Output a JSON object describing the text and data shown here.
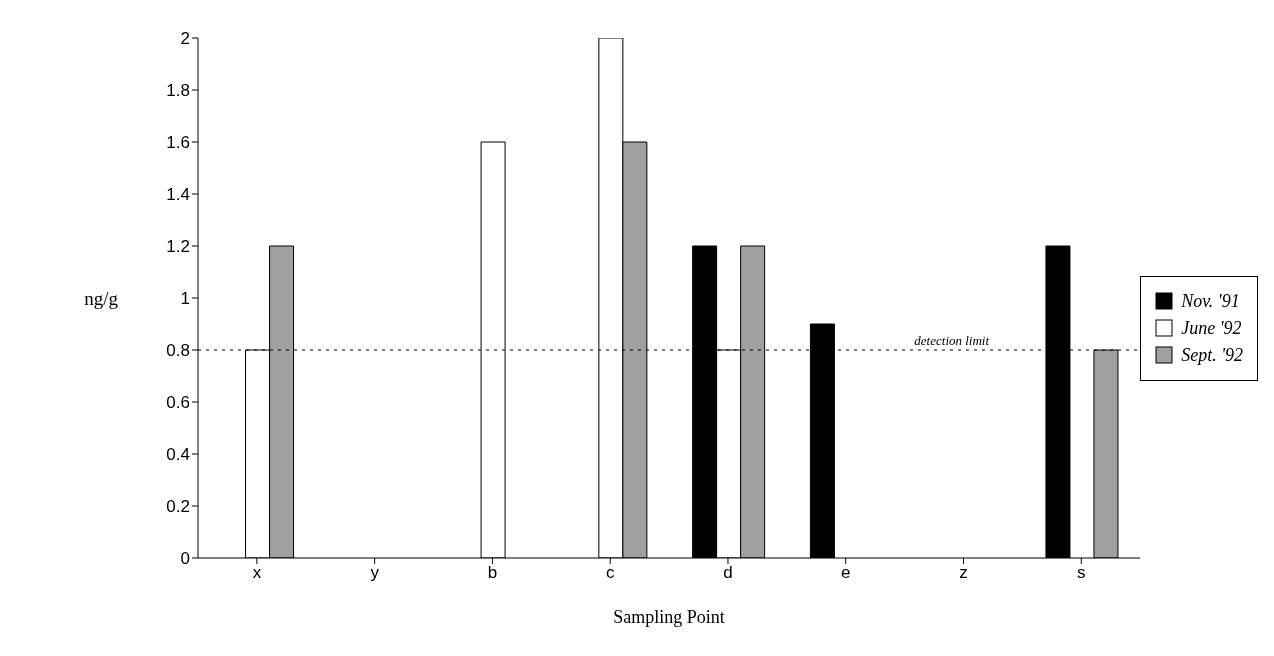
{
  "chart_data": {
    "type": "bar",
    "xlabel": "Sampling Point",
    "ylabel": "ng/g",
    "categories": [
      "x",
      "y",
      "b",
      "c",
      "d",
      "e",
      "z",
      "s"
    ],
    "series": [
      {
        "name": "Nov. '91",
        "color": "#000000",
        "values": [
          0,
          0,
          0,
          0,
          1.2,
          0.9,
          0,
          1.2
        ]
      },
      {
        "name": "June '92",
        "color": "#ffffff",
        "values": [
          0.8,
          0,
          1.6,
          2,
          0.8,
          0,
          0,
          0
        ]
      },
      {
        "name": "Sept. '92",
        "color": "#a0a0a0",
        "values": [
          1.2,
          0,
          0,
          1.6,
          1.2,
          0,
          0,
          0.8
        ]
      }
    ],
    "ylim": [
      0,
      2
    ],
    "yticks": [
      0,
      0.2,
      0.4,
      0.6,
      0.8,
      1,
      1.2,
      1.4,
      1.6,
      1.8,
      2
    ],
    "ref_lines": [
      {
        "axis": "y",
        "value": 0.8,
        "label": "detection limit",
        "line_style": "dotted",
        "color": "#000000"
      }
    ],
    "grid": false,
    "legend": "right"
  }
}
